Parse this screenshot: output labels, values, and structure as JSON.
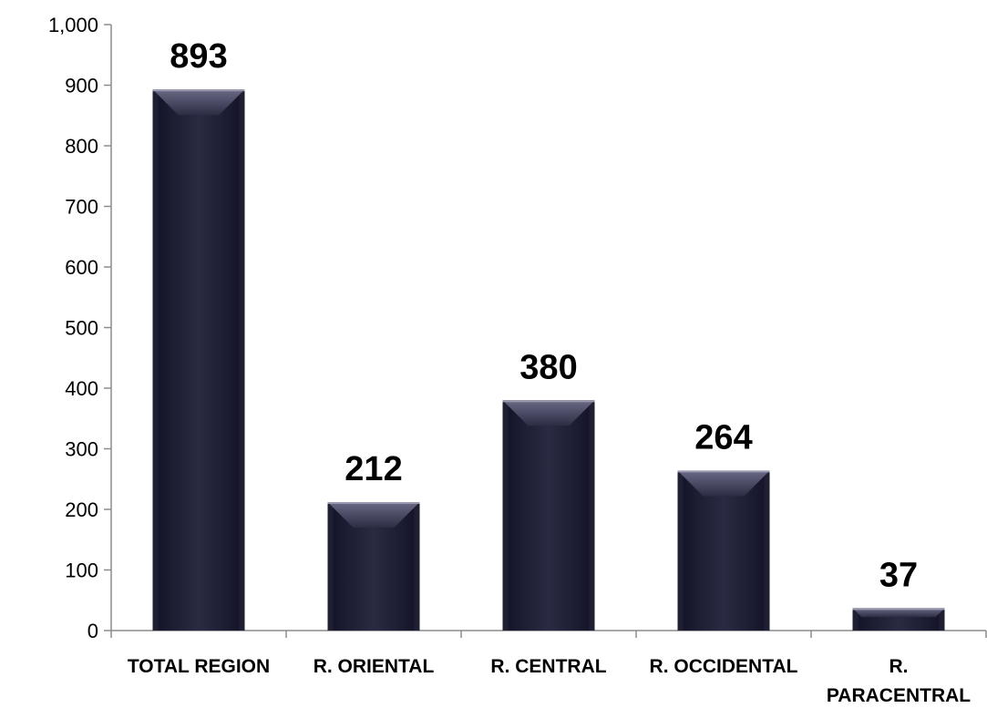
{
  "chart_data": {
    "type": "bar",
    "categories": [
      [
        "TOTAL REGION"
      ],
      [
        "R. ORIENTAL"
      ],
      [
        "R. CENTRAL"
      ],
      [
        "R. OCCIDENTAL"
      ],
      [
        "R.",
        "PARACENTRAL"
      ]
    ],
    "values": [
      893,
      212,
      380,
      264,
      37
    ],
    "data_labels": [
      "893",
      "212",
      "380",
      "264",
      "37"
    ],
    "ylim": [
      0,
      1000
    ],
    "yticks": [
      0,
      100,
      200,
      300,
      400,
      500,
      600,
      700,
      800,
      900,
      1000
    ],
    "ytick_labels": [
      "0",
      "100",
      "200",
      "300",
      "400",
      "500",
      "600",
      "700",
      "800",
      "900",
      "1,000"
    ],
    "title": "",
    "xlabel": "",
    "ylabel": "",
    "grid": false,
    "legend": "none",
    "colors": {
      "bar": "#1f1f33",
      "axis": "#8c8c8c"
    }
  }
}
